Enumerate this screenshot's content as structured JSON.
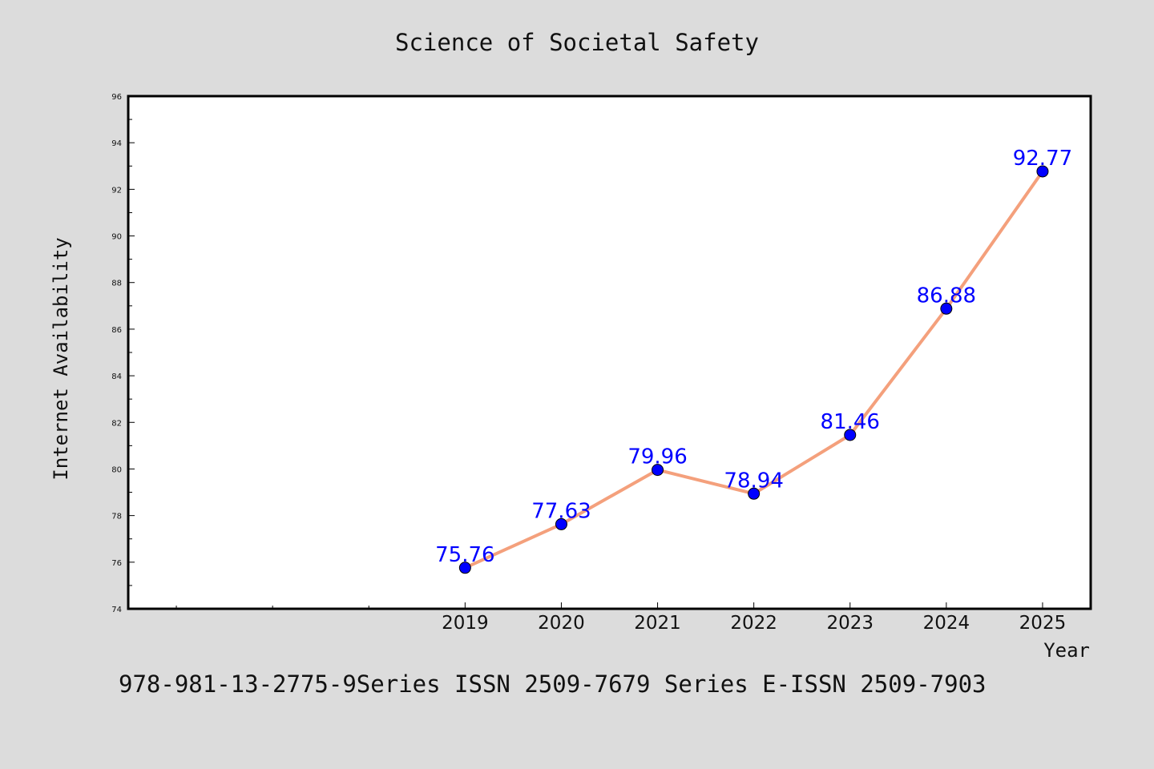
{
  "chart_data": {
    "type": "line",
    "title": "Science of Societal Safety",
    "xlabel": "Year",
    "ylabel": "Internet Availability",
    "categories": [
      "2019",
      "2020",
      "2021",
      "2022",
      "2023",
      "2024",
      "2025"
    ],
    "series": [
      {
        "values": [
          75.76,
          77.63,
          79.96,
          78.94,
          81.46,
          86.88,
          92.77
        ],
        "labels": [
          "75.76",
          "77.63",
          "79.96",
          "78.94",
          "81.46",
          "86.88",
          "92.77"
        ],
        "line_color": "#f4a07c",
        "marker_color": "#0000ff"
      }
    ],
    "ylim": [
      74,
      96
    ],
    "yticks": [
      "74",
      "76",
      "78",
      "80",
      "82",
      "84",
      "86",
      "88",
      "90",
      "92",
      "94",
      "96"
    ],
    "xlim_years": [
      2015.5,
      2025.5
    ],
    "grid": false,
    "legend": "none",
    "data_label_color": "#0000ff"
  },
  "footer": {
    "text": "978-981-13-2775-9Series ISSN 2509-7679 Series E-ISSN 2509-7903"
  }
}
